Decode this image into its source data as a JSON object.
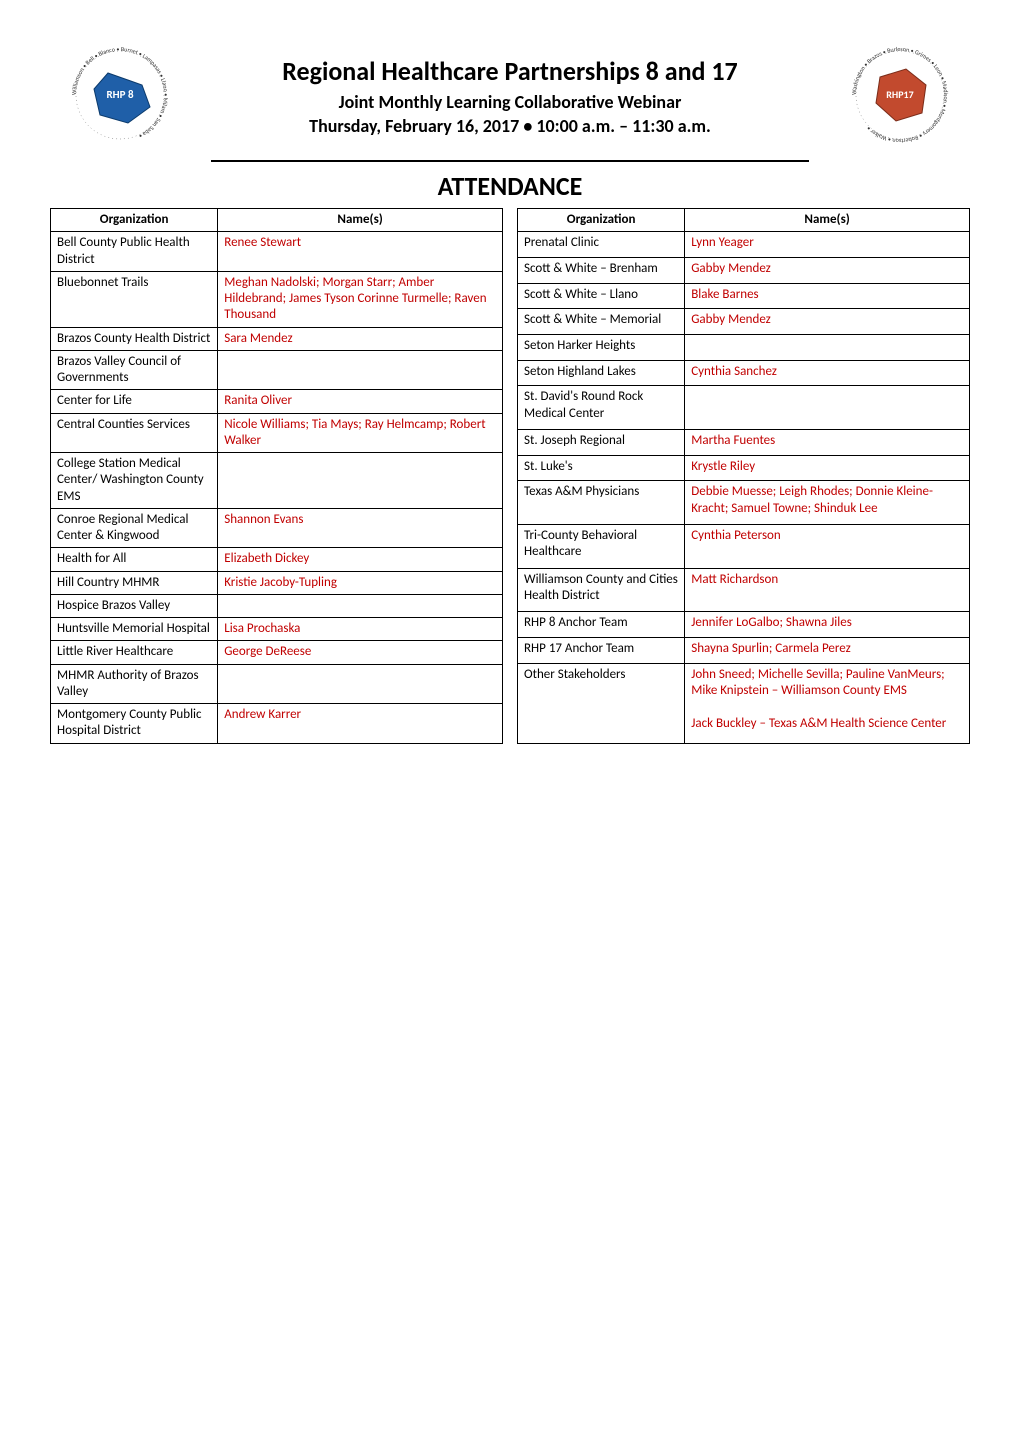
{
  "header": {
    "title": "Regional Healthcare Partnerships 8 and 17",
    "subtitle": "Joint Monthly Learning Collaborative Webinar",
    "dateline": "Thursday, February 16, 2017 • 10:00 a.m. – 11:30 a.m.",
    "logo_left": {
      "label": "RHP 8",
      "ring_text": "Williamson • Bell • Blanco • Burnet • Lampasas • Llano • Milam • San Saba"
    },
    "logo_right": {
      "label": "RHP17",
      "ring_text": "Washington • Brazos • Burleson • Grimes • Leon • Madison • Montgomery • Robertson • Walker"
    }
  },
  "section_title": "ATTENDANCE",
  "columns": {
    "org": "Organization",
    "names": "Name(s)"
  },
  "left_rows": [
    {
      "org": "Bell County Public Health District",
      "names": "Renee Stewart",
      "red": true
    },
    {
      "org": "Bluebonnet Trails",
      "names": "Meghan Nadolski; Morgan Starr; Amber Hildebrand; James Tyson Corinne Turmelle; Raven Thousand",
      "red": true
    },
    {
      "org": "Brazos County Health District",
      "names": "Sara Mendez",
      "red": true
    },
    {
      "org": "Brazos Valley Council of Governments",
      "names": "",
      "red": false
    },
    {
      "org": "Center for Life",
      "names": "Ranita Oliver",
      "red": true
    },
    {
      "org": "Central Counties Services",
      "names": "Nicole Williams; Tia Mays; Ray Helmcamp; Robert Walker",
      "red": true
    },
    {
      "org": "College Station Medical Center/ Washington County EMS",
      "names": "",
      "red": false
    },
    {
      "org": "Conroe Regional Medical Center  & Kingwood",
      "names": "Shannon Evans",
      "red": true
    },
    {
      "org": "Health for All",
      "names": "Elizabeth Dickey",
      "red": true
    },
    {
      "org": "Hill Country MHMR",
      "names": "Kristie Jacoby-Tupling",
      "red": true
    },
    {
      "org": "Hospice Brazos Valley",
      "names": "",
      "red": false
    },
    {
      "org": "Huntsville Memorial Hospital",
      "names": "Lisa Prochaska",
      "red": true
    },
    {
      "org": "Little River Healthcare",
      "names": "George DeReese",
      "red": true
    },
    {
      "org": "MHMR Authority of Brazos Valley",
      "names": "",
      "red": false
    },
    {
      "org": "Montgomery County Public Hospital District",
      "names": "Andrew Karrer",
      "red": true
    }
  ],
  "right_rows": [
    {
      "org": "Prenatal Clinic",
      "names": "Lynn Yeager",
      "red": true
    },
    {
      "org": "Scott & White – Brenham",
      "names": "Gabby Mendez",
      "red": true
    },
    {
      "org": "Scott & White – Llano",
      "names": "Blake Barnes",
      "red": true
    },
    {
      "org": "Scott & White – Memorial",
      "names": "Gabby Mendez",
      "red": true
    },
    {
      "org": "Seton Harker Heights",
      "names": "",
      "red": false
    },
    {
      "org": "Seton Highland Lakes",
      "names": "Cynthia Sanchez",
      "red": true
    },
    {
      "org": "St. David's Round Rock Medical Center",
      "names": "",
      "red": false
    },
    {
      "org": "St. Joseph Regional",
      "names": "Martha Fuentes",
      "red": true
    },
    {
      "org": "St. Luke's",
      "names": "Krystle Riley",
      "red": true
    },
    {
      "org": "Texas A&M Physicians",
      "names": "Debbie Muesse; Leigh Rhodes; Donnie Kleine-Kracht; Samuel Towne; Shinduk Lee",
      "red": true
    },
    {
      "org": "Tri-County Behavioral Healthcare",
      "names": "Cynthia Peterson",
      "red": true
    },
    {
      "org": "Williamson County and Cities Health District",
      "names": "Matt Richardson",
      "red": true
    },
    {
      "org": "RHP 8 Anchor Team",
      "names": "Jennifer LoGalbo; Shawna Jiles",
      "red": true
    },
    {
      "org": "RHP 17 Anchor Team",
      "names": "Shayna Spurlin; Carmela Perez",
      "red": true
    },
    {
      "org": "Other Stakeholders",
      "names": "John Sneed; Michelle Sevilla; Pauline VanMeurs; Mike Knipstein – Williamson County EMS\n\nJack Buckley – Texas A&M Health Science Center",
      "red": true
    }
  ],
  "style": {
    "red_hex": "#c00000",
    "black_hex": "#000000",
    "font_family": "Calibri, Arial, sans-serif",
    "title_fontsize_pt": 20,
    "subtitle_fontsize_pt": 14,
    "cell_fontsize_pt": 10,
    "border_color": "#000000",
    "background": "#ffffff"
  }
}
